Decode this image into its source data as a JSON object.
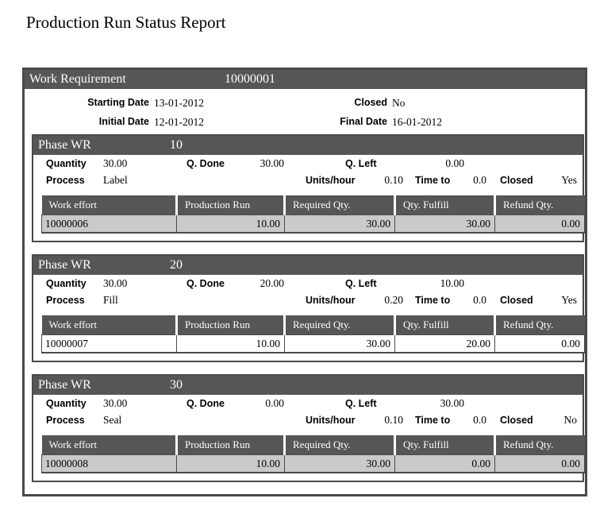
{
  "page_title": "Production Run Status Report",
  "colors": {
    "header_bar_bg": "#565656",
    "header_bar_text": "#ffffff",
    "box_border": "#4a4a4a",
    "shaded_row_bg": "#cacaca",
    "body_text": "#000000"
  },
  "report": {
    "header": {
      "label": "Work Requirement",
      "number": "10000001"
    },
    "info": {
      "starting_date": {
        "label": "Starting Date",
        "value": "13-01-2012"
      },
      "closed": {
        "label": "Closed",
        "value": "No"
      },
      "initial_date": {
        "label": "Initial Date",
        "value": "12-01-2012"
      },
      "final_date": {
        "label": "Final Date",
        "value": "16-01-2012"
      }
    },
    "field_labels": {
      "phase": "Phase WR",
      "quantity": "Quantity",
      "q_done": "Q. Done",
      "q_left": "Q. Left",
      "process": "Process",
      "units_hour": "Units/hour",
      "time_to": "Time to",
      "closed": "Closed"
    },
    "table_headers": [
      "Work effort",
      "Production Run",
      "Required Qty.",
      "Qty. Fulfill",
      "Refund Qty."
    ],
    "phases": [
      {
        "seq": "10",
        "quantity": "30.00",
        "q_done": "30.00",
        "q_left": "0.00",
        "process": "Label",
        "units_hour": "0.10",
        "time_to": "0.0",
        "closed": "Yes",
        "shaded": true,
        "row": {
          "work_effort": "10000006",
          "production_run": "10.00",
          "required_qty": "30.00",
          "qty_fulfill": "30.00",
          "refund_qty": "0.00"
        }
      },
      {
        "seq": "20",
        "quantity": "30.00",
        "q_done": "20.00",
        "q_left": "10.00",
        "process": "Fill",
        "units_hour": "0.20",
        "time_to": "0.0",
        "closed": "Yes",
        "shaded": false,
        "row": {
          "work_effort": "10000007",
          "production_run": "10.00",
          "required_qty": "30.00",
          "qty_fulfill": "20.00",
          "refund_qty": "0.00"
        }
      },
      {
        "seq": "30",
        "quantity": "30.00",
        "q_done": "0.00",
        "q_left": "30.00",
        "process": "Seal",
        "units_hour": "0.10",
        "time_to": "0.0",
        "closed": "No",
        "shaded": true,
        "row": {
          "work_effort": "10000008",
          "production_run": "10.00",
          "required_qty": "30.00",
          "qty_fulfill": "0.00",
          "refund_qty": "0.00"
        }
      }
    ]
  }
}
